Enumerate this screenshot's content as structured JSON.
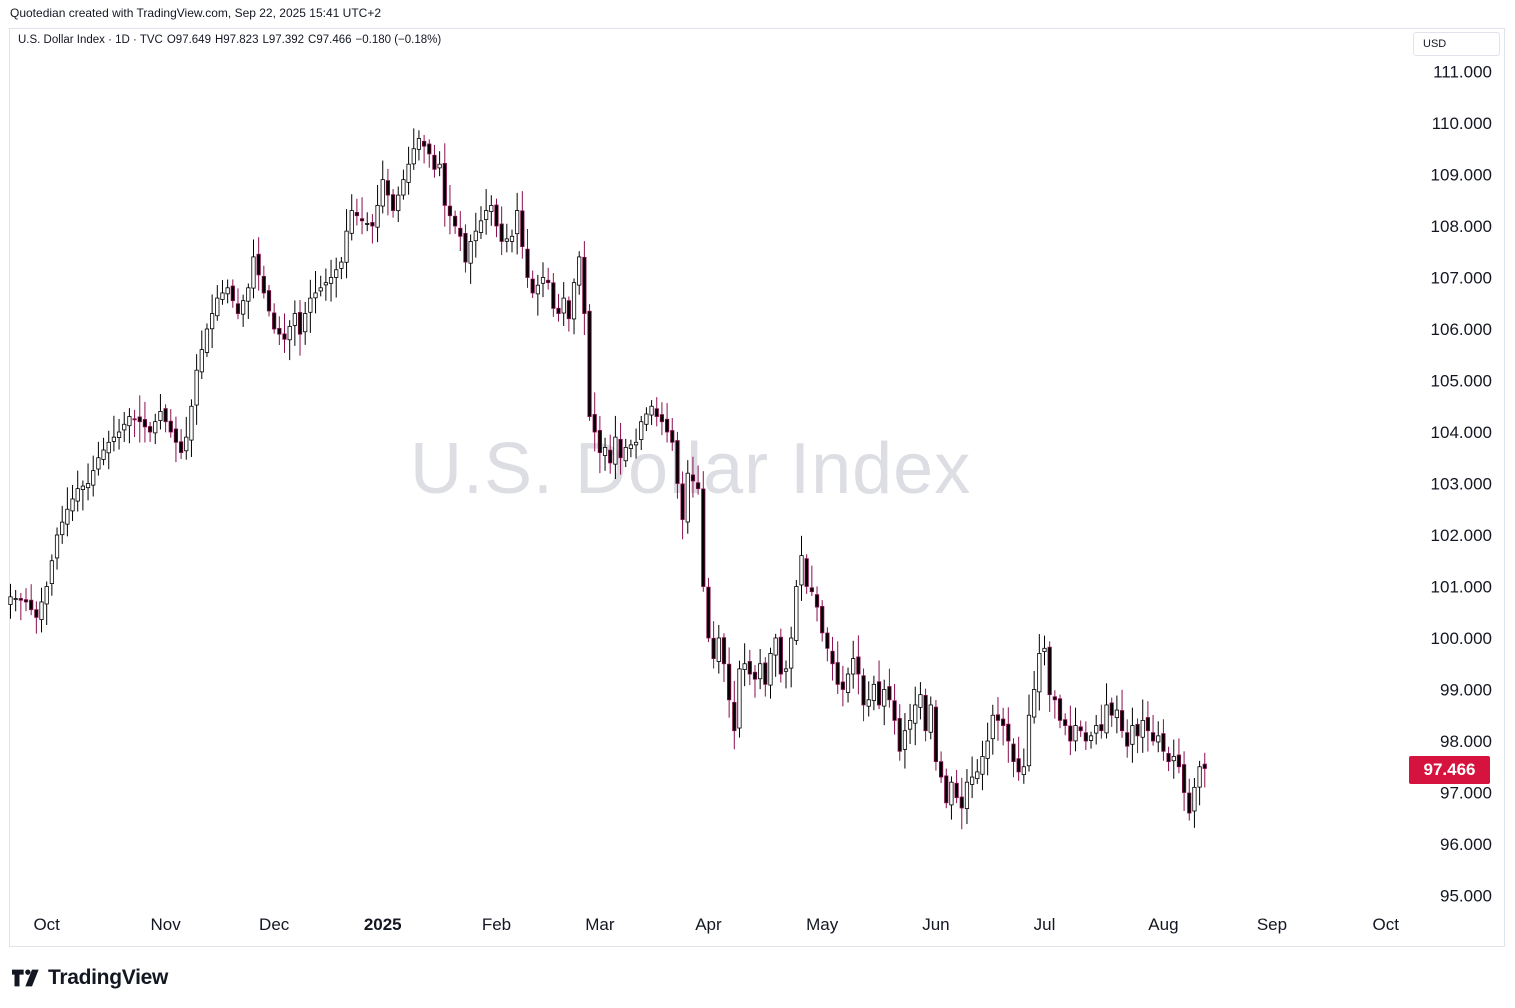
{
  "header": {
    "credit": "Quotedian created with TradingView.com, Sep 22, 2025 15:41 UTC+2"
  },
  "legend": {
    "symbol": "U.S. Dollar Index · 1D · TVC",
    "open": "O97.649",
    "high": "H97.823",
    "low": "L97.392",
    "close": "C97.466",
    "change": "−0.180 (−0.18%)"
  },
  "currency": "USD",
  "watermark": "U.S. Dollar Index",
  "last_price": "97.466",
  "brand": {
    "name": "TradingView"
  },
  "colors": {
    "up": "#000000",
    "down": "#880e4f",
    "badge": "#d5133e",
    "grid": "#ffffff"
  },
  "chart_data": {
    "type": "candlestick",
    "title": "U.S. Dollar Index",
    "xlabel": "",
    "ylabel": "USD",
    "ylim": [
      94.5,
      111.5
    ],
    "y_ticks": [
      "111.000",
      "110.000",
      "109.000",
      "108.000",
      "107.000",
      "106.000",
      "105.000",
      "104.000",
      "103.000",
      "102.000",
      "101.000",
      "100.000",
      "99.000",
      "98.000",
      "97.000",
      "96.000",
      "95.000"
    ],
    "x_ticks": [
      {
        "label": "Oct",
        "index": 7,
        "bold": false
      },
      {
        "label": "Nov",
        "index": 30,
        "bold": false
      },
      {
        "label": "Dec",
        "index": 51,
        "bold": false
      },
      {
        "label": "2025",
        "index": 72,
        "bold": true
      },
      {
        "label": "Feb",
        "index": 94,
        "bold": false
      },
      {
        "label": "Mar",
        "index": 114,
        "bold": false
      },
      {
        "label": "Apr",
        "index": 135,
        "bold": false
      },
      {
        "label": "May",
        "index": 157,
        "bold": false
      },
      {
        "label": "Jun",
        "index": 179,
        "bold": false
      },
      {
        "label": "Jul",
        "index": 200,
        "bold": false
      },
      {
        "label": "Aug",
        "index": 223,
        "bold": false
      },
      {
        "label": "Sep",
        "index": 244,
        "bold": false
      },
      {
        "label": "Oct",
        "index": 266,
        "bold": false
      }
    ],
    "anchors": [
      [
        0,
        100.8
      ],
      [
        3,
        100.7
      ],
      [
        5,
        100.4
      ],
      [
        7,
        101.0
      ],
      [
        9,
        102.0
      ],
      [
        11,
        102.5
      ],
      [
        13,
        102.9
      ],
      [
        15,
        103.0
      ],
      [
        17,
        103.5
      ],
      [
        19,
        103.8
      ],
      [
        21,
        104.0
      ],
      [
        23,
        104.3
      ],
      [
        25,
        104.2
      ],
      [
        27,
        104.0
      ],
      [
        29,
        104.4
      ],
      [
        31,
        104.0
      ],
      [
        33,
        103.6
      ],
      [
        34,
        103.9
      ],
      [
        35,
        104.5
      ],
      [
        36,
        105.2
      ],
      [
        38,
        106.0
      ],
      [
        40,
        106.6
      ],
      [
        42,
        106.8
      ],
      [
        44,
        106.3
      ],
      [
        46,
        106.8
      ],
      [
        47,
        107.4
      ],
      [
        49,
        106.7
      ],
      [
        51,
        106.0
      ],
      [
        53,
        105.8
      ],
      [
        55,
        106.3
      ],
      [
        56,
        105.9
      ],
      [
        57,
        106.3
      ],
      [
        58,
        106.6
      ],
      [
        60,
        106.8
      ],
      [
        62,
        107.0
      ],
      [
        64,
        107.3
      ],
      [
        65,
        107.9
      ],
      [
        66,
        108.3
      ],
      [
        68,
        108.1
      ],
      [
        70,
        108.0
      ],
      [
        71,
        108.4
      ],
      [
        72,
        108.9
      ],
      [
        74,
        108.3
      ],
      [
        76,
        108.9
      ],
      [
        78,
        109.5
      ],
      [
        79,
        109.7
      ],
      [
        81,
        109.4
      ],
      [
        82,
        109.1
      ],
      [
        83,
        109.2
      ],
      [
        84,
        108.4
      ],
      [
        86,
        108.0
      ],
      [
        87,
        107.8
      ],
      [
        88,
        107.3
      ],
      [
        89,
        107.7
      ],
      [
        90,
        107.9
      ],
      [
        92,
        108.3
      ],
      [
        93,
        108.4
      ],
      [
        94,
        108.0
      ],
      [
        95,
        107.7
      ],
      [
        97,
        107.8
      ],
      [
        98,
        108.3
      ],
      [
        99,
        107.6
      ],
      [
        100,
        107.0
      ],
      [
        101,
        106.7
      ],
      [
        103,
        107.0
      ],
      [
        104,
        106.9
      ],
      [
        105,
        106.4
      ],
      [
        106,
        106.3
      ],
      [
        107,
        106.6
      ],
      [
        108,
        106.2
      ],
      [
        109,
        106.9
      ],
      [
        110,
        107.4
      ],
      [
        111,
        106.3
      ],
      [
        112,
        104.3
      ],
      [
        113,
        104.0
      ],
      [
        114,
        103.6
      ],
      [
        115,
        103.7
      ],
      [
        116,
        103.4
      ],
      [
        117,
        103.9
      ],
      [
        118,
        103.5
      ],
      [
        119,
        103.7
      ],
      [
        121,
        103.8
      ],
      [
        122,
        104.2
      ],
      [
        124,
        104.5
      ],
      [
        125,
        104.3
      ],
      [
        126,
        104.2
      ],
      [
        128,
        103.8
      ],
      [
        129,
        103.0
      ],
      [
        130,
        102.3
      ],
      [
        131,
        103.2
      ],
      [
        133,
        102.9
      ],
      [
        134,
        101.0
      ],
      [
        135,
        100.0
      ],
      [
        136,
        99.6
      ],
      [
        137,
        100.0
      ],
      [
        138,
        99.5
      ],
      [
        139,
        98.8
      ],
      [
        140,
        98.2
      ],
      [
        141,
        99.4
      ],
      [
        142,
        99.5
      ],
      [
        143,
        99.3
      ],
      [
        144,
        99.2
      ],
      [
        145,
        99.5
      ],
      [
        146,
        99.1
      ],
      [
        147,
        99.7
      ],
      [
        148,
        100.0
      ],
      [
        149,
        99.3
      ],
      [
        150,
        99.4
      ],
      [
        151,
        100.0
      ],
      [
        152,
        101.0
      ],
      [
        153,
        101.6
      ],
      [
        154,
        101.0
      ],
      [
        155,
        100.9
      ],
      [
        156,
        100.6
      ],
      [
        157,
        100.1
      ],
      [
        158,
        99.8
      ],
      [
        159,
        99.5
      ],
      [
        160,
        99.1
      ],
      [
        161,
        99.0
      ],
      [
        162,
        99.3
      ],
      [
        163,
        99.6
      ],
      [
        164,
        99.3
      ],
      [
        165,
        98.7
      ],
      [
        166,
        98.8
      ],
      [
        167,
        99.1
      ],
      [
        168,
        98.7
      ],
      [
        169,
        99.0
      ],
      [
        170,
        98.8
      ],
      [
        171,
        98.4
      ],
      [
        172,
        97.8
      ],
      [
        173,
        98.2
      ],
      [
        174,
        98.4
      ],
      [
        175,
        98.7
      ],
      [
        176,
        98.9
      ],
      [
        177,
        98.2
      ],
      [
        178,
        98.7
      ],
      [
        179,
        97.6
      ],
      [
        180,
        97.3
      ],
      [
        181,
        96.8
      ],
      [
        182,
        97.2
      ],
      [
        183,
        96.9
      ],
      [
        184,
        96.7
      ],
      [
        185,
        97.2
      ],
      [
        186,
        97.3
      ],
      [
        187,
        97.4
      ],
      [
        188,
        97.7
      ],
      [
        189,
        98.0
      ],
      [
        190,
        98.5
      ],
      [
        191,
        98.4
      ],
      [
        192,
        98.3
      ],
      [
        193,
        98.0
      ],
      [
        194,
        97.6
      ],
      [
        195,
        97.4
      ],
      [
        196,
        97.5
      ],
      [
        197,
        98.5
      ],
      [
        198,
        99.0
      ],
      [
        199,
        99.7
      ],
      [
        200,
        99.8
      ],
      [
        201,
        98.9
      ],
      [
        202,
        98.8
      ],
      [
        203,
        98.4
      ],
      [
        204,
        98.3
      ],
      [
        205,
        98.0
      ],
      [
        206,
        98.3
      ],
      [
        207,
        98.2
      ],
      [
        208,
        98.0
      ],
      [
        209,
        98.1
      ],
      [
        210,
        98.3
      ],
      [
        211,
        98.2
      ],
      [
        212,
        98.7
      ],
      [
        213,
        98.5
      ],
      [
        214,
        98.6
      ],
      [
        215,
        98.2
      ],
      [
        216,
        97.9
      ],
      [
        217,
        98.3
      ],
      [
        218,
        98.1
      ],
      [
        219,
        98.4
      ],
      [
        220,
        98.2
      ],
      [
        221,
        98.0
      ],
      [
        222,
        98.1
      ],
      [
        223,
        97.8
      ],
      [
        224,
        97.6
      ],
      [
        225,
        97.7
      ],
      [
        226,
        97.5
      ],
      [
        227,
        97.0
      ],
      [
        228,
        96.6
      ],
      [
        229,
        97.1
      ],
      [
        230,
        97.5
      ],
      [
        231,
        97.466
      ]
    ]
  }
}
